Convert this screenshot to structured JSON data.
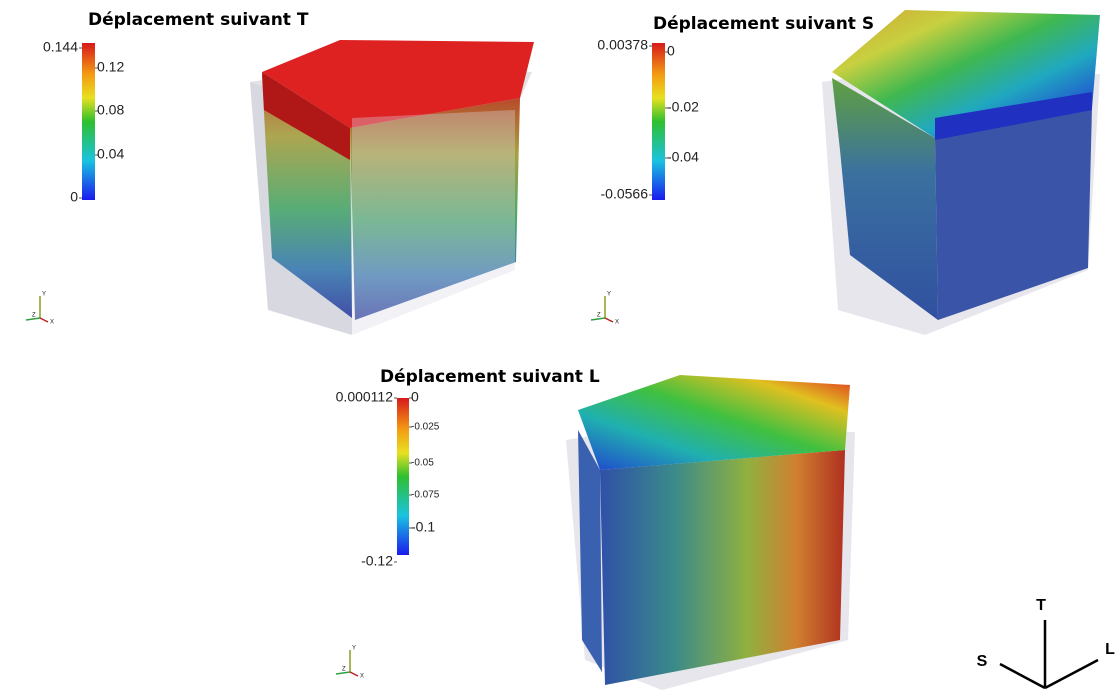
{
  "panels": [
    {
      "title": "Déplacement suivant T",
      "colorbar": {
        "max_label": "0.144",
        "min_label": "0",
        "ticks": [
          "0.12",
          "0.08",
          "0.04"
        ]
      }
    },
    {
      "title": "Déplacement suivant S",
      "colorbar": {
        "max_label": "0.00378",
        "min_label": "-0.0566",
        "ticks": [
          "0",
          "-0.02",
          "-0.04"
        ]
      }
    },
    {
      "title": "Déplacement suivant L",
      "colorbar": {
        "max_label": "0.000112",
        "min_label": "-0.12",
        "ticks": [
          "0",
          "-0.025",
          "-0.05",
          "-0.075",
          "-0.1"
        ]
      }
    }
  ],
  "orientation_axes": [
    "Y",
    "Z",
    "X"
  ],
  "triad": {
    "up": "T",
    "left": "S",
    "right": "L"
  }
}
